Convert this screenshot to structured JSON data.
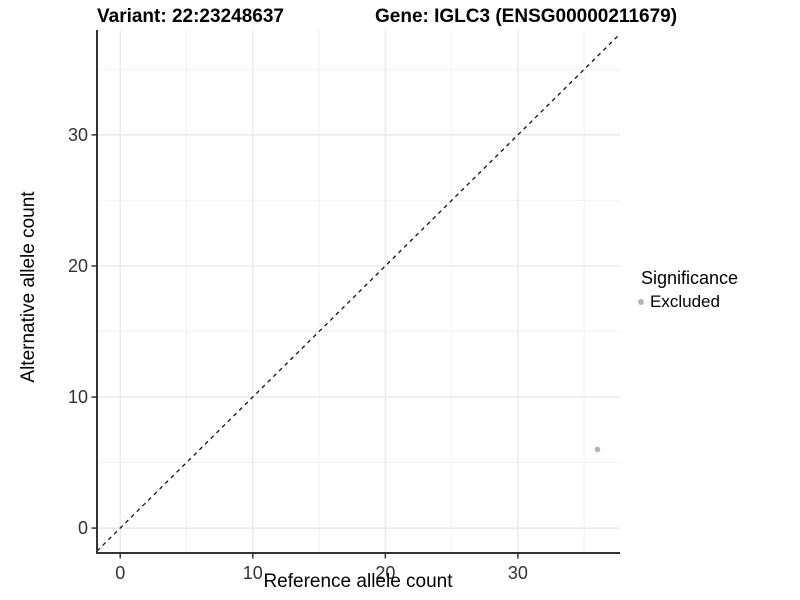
{
  "header": {
    "title_left": "Variant: 22:23248637",
    "title_right": "Gene: IGLC3 (ENSG00000211679)"
  },
  "legend": {
    "title": "Significance",
    "entries": [
      {
        "label": "Excluded",
        "color": "#b5b5b5"
      }
    ]
  },
  "chart_data": {
    "type": "scatter",
    "title": "Variant: 22:23248637 — Gene: IGLC3 (ENSG00000211679)",
    "xlabel": "Reference allele count",
    "ylabel": "Alternative allele count",
    "xlim": [
      -1.75,
      37.7
    ],
    "ylim": [
      -1.9,
      38.0
    ],
    "x_ticks": [
      0,
      10,
      20,
      30
    ],
    "y_ticks": [
      0,
      10,
      20,
      30
    ],
    "x_minor_ticks": [
      5,
      15,
      25,
      35
    ],
    "y_minor_ticks": [
      5,
      15,
      25,
      35
    ],
    "grid": "major+minor",
    "legend_position": "right",
    "reference_line": {
      "type": "identity",
      "style": "dashed",
      "color": "#111111"
    },
    "series": [
      {
        "name": "Excluded",
        "color": "#b5b5b5",
        "points": [
          {
            "x": 36,
            "y": 6
          }
        ]
      }
    ],
    "colors": {
      "axis_line": "#333333",
      "tick_label": "#333333",
      "grid_major": "#e6e6e6",
      "grid_minor": "#f2f2f2",
      "background": "#ffffff"
    }
  }
}
